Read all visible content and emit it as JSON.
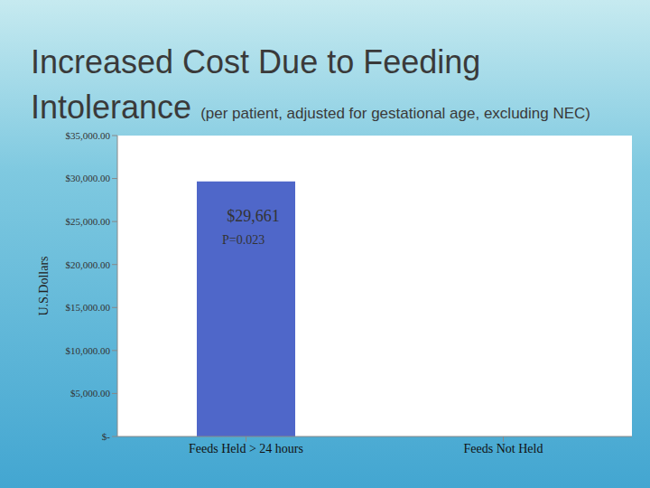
{
  "chart_data": {
    "type": "bar",
    "title": "Increased Cost Due to Feeding Intolerance",
    "subtitle": "(per patient, adjusted for gestational age, excluding NEC)",
    "y_label": "U.S.Dollars",
    "categories": [
      "Feeds Held > 24 hours",
      "Feeds Not Held"
    ],
    "values": [
      29661,
      null
    ],
    "value_labels": [
      "$29,661",
      null
    ],
    "data_labels": true,
    "annotations": [
      "P=0.023"
    ],
    "color": "#4f67c9",
    "ylim": [
      0,
      35000
    ],
    "yticks": [
      {
        "value": 0,
        "label": "$-"
      },
      {
        "value": 5000,
        "label": "$5,000.00"
      },
      {
        "value": 10000,
        "label": "$10,000.00"
      },
      {
        "value": 15000,
        "label": "$15,000.00"
      },
      {
        "value": 20000,
        "label": "$20,000.00"
      },
      {
        "value": 25000,
        "label": "$25,000.00"
      },
      {
        "value": 30000,
        "label": "$30,000.00"
      },
      {
        "value": 35000,
        "label": "$35,000.00"
      }
    ],
    "grid": false
  }
}
